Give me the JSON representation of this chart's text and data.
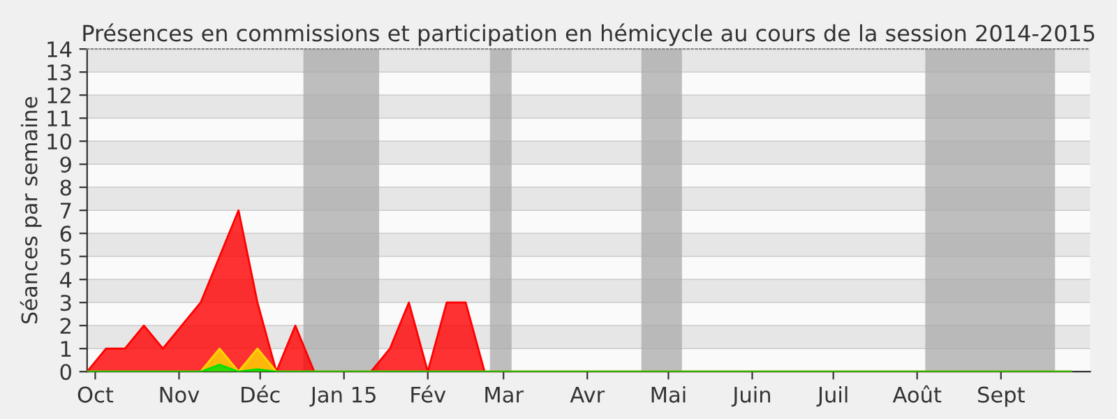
{
  "chart_data": {
    "type": "area",
    "title": "Présences en commissions et participation en hémicycle au cours de la session 2014-2015",
    "ylabel": "Séances par semaine",
    "x": [
      "2014-09-28",
      "2014-10-05",
      "2014-10-12",
      "2014-10-19",
      "2014-10-26",
      "2014-11-02",
      "2014-11-09",
      "2014-11-16",
      "2014-11-23",
      "2014-11-30",
      "2014-12-07",
      "2014-12-14",
      "2014-12-21",
      "2014-12-28",
      "2015-01-04",
      "2015-01-11",
      "2015-01-18",
      "2015-01-25",
      "2015-02-01",
      "2015-02-08",
      "2015-02-15",
      "2015-02-22",
      "2015-03-01",
      "2015-03-08",
      "2015-03-15",
      "2015-03-22",
      "2015-03-29",
      "2015-04-05",
      "2015-04-12",
      "2015-04-19",
      "2015-04-26",
      "2015-05-03",
      "2015-05-10",
      "2015-05-17",
      "2015-05-24",
      "2015-05-31",
      "2015-06-07",
      "2015-06-14",
      "2015-06-21",
      "2015-06-28",
      "2015-07-05",
      "2015-07-12",
      "2015-07-19",
      "2015-07-26",
      "2015-08-02",
      "2015-08-09",
      "2015-08-16",
      "2015-08-23",
      "2015-08-30",
      "2015-09-06",
      "2015-09-13",
      "2015-09-20",
      "2015-09-27"
    ],
    "series": [
      {
        "color": "#ff0000",
        "values": [
          0,
          1,
          1,
          2,
          1,
          2,
          3,
          5,
          7,
          3,
          0,
          2,
          0,
          0,
          0,
          0,
          1,
          3,
          0,
          3,
          3,
          0,
          0,
          0,
          0,
          0,
          0,
          0,
          0,
          0,
          0,
          0,
          0,
          0,
          0,
          0,
          0,
          0,
          0,
          0,
          0,
          0,
          0,
          0,
          0,
          0,
          0,
          0,
          0,
          0,
          0,
          0,
          0
        ]
      },
      {
        "color": "#ffd700",
        "values": [
          0,
          0,
          0,
          0,
          0,
          0,
          0,
          1,
          0,
          1,
          0,
          0,
          0,
          0,
          0,
          0,
          0,
          0,
          0,
          0,
          0,
          0,
          0,
          0,
          0,
          0,
          0,
          0,
          0,
          0,
          0,
          0,
          0,
          0,
          0,
          0,
          0,
          0,
          0,
          0,
          0,
          0,
          0,
          0,
          0,
          0,
          0,
          0,
          0,
          0,
          0,
          0,
          0
        ]
      },
      {
        "color": "#00e000",
        "values": [
          0,
          0,
          0,
          0,
          0,
          0,
          0,
          0.3,
          0,
          0.1,
          0,
          0,
          0,
          0,
          0,
          0,
          0,
          0,
          0,
          0,
          0,
          0,
          0,
          0,
          0,
          0,
          0,
          0,
          0,
          0,
          0,
          0,
          0,
          0,
          0,
          0,
          0,
          0,
          0,
          0,
          0,
          0,
          0,
          0,
          0,
          0,
          0,
          0,
          0,
          0,
          0,
          0,
          0
        ]
      }
    ],
    "xlim": [
      "2014-09-28",
      "2015-10-04"
    ],
    "ylim": [
      0,
      14
    ],
    "yticks": [
      0,
      1,
      2,
      3,
      4,
      5,
      6,
      7,
      8,
      9,
      10,
      11,
      12,
      13,
      14
    ],
    "xticks": [
      {
        "value": "2014-10-01",
        "label": "Oct"
      },
      {
        "value": "2014-11-01",
        "label": "Nov"
      },
      {
        "value": "2014-12-01",
        "label": "Déc"
      },
      {
        "value": "2015-01-01",
        "label": "Jan 15"
      },
      {
        "value": "2015-02-01",
        "label": "Fév"
      },
      {
        "value": "2015-03-01",
        "label": "Mar"
      },
      {
        "value": "2015-04-01",
        "label": "Avr"
      },
      {
        "value": "2015-05-01",
        "label": "Mai"
      },
      {
        "value": "2015-06-01",
        "label": "Juin"
      },
      {
        "value": "2015-07-01",
        "label": "Juil"
      },
      {
        "value": "2015-08-01",
        "label": "Août"
      },
      {
        "value": "2015-09-01",
        "label": "Sept"
      }
    ],
    "bands": [
      {
        "axis": "x",
        "from": "2014-12-17",
        "to": "2015-01-14",
        "color": "#aaaaaa"
      },
      {
        "axis": "x",
        "from": "2015-02-24",
        "to": "2015-03-04",
        "color": "#aaaaaa"
      },
      {
        "axis": "x",
        "from": "2015-04-21",
        "to": "2015-05-06",
        "color": "#aaaaaa"
      },
      {
        "axis": "x",
        "from": "2015-08-04",
        "to": "2015-09-21",
        "color": "#aaaaaa"
      }
    ],
    "grid": "y"
  }
}
